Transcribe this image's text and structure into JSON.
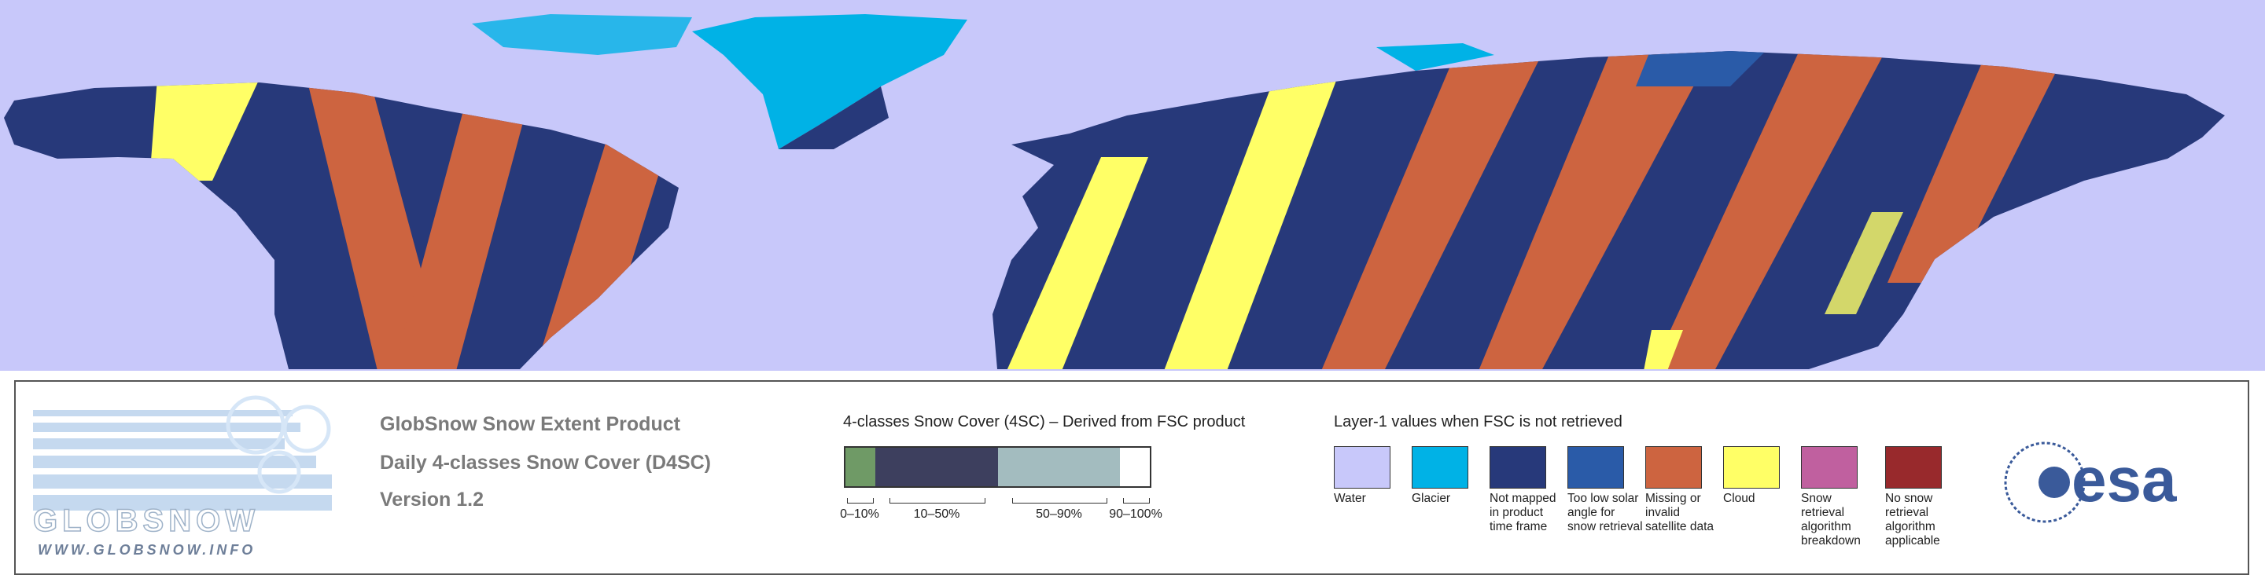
{
  "header": {
    "lines": [
      "GlobSnow Snow Extent Product",
      "Daily 4-classes Snow Cover (D4SC)",
      "Version 1.2"
    ]
  },
  "logo": {
    "name": "GLOBSNOW",
    "url": "WWW.GLOBSNOW.INFO",
    "agency": "esa"
  },
  "fsc_legend": {
    "title": "4-classes Snow Cover (4SC) – Derived from FSC product",
    "classes": [
      {
        "label": "0–10%",
        "color": "#6f9a66"
      },
      {
        "label": "10–50%",
        "color": "#3d3f5e"
      },
      {
        "label": "50–90%",
        "color": "#a3bcbf"
      },
      {
        "label": "90–100%",
        "color": "#ffffff"
      }
    ]
  },
  "layer1_legend": {
    "title": "Layer-1 values when FSC is not retrieved",
    "items": [
      {
        "label": "Water",
        "color": "#c8c8fa"
      },
      {
        "label": "Glacier",
        "color": "#00b2e6"
      },
      {
        "label": "Not mapped in product time frame",
        "color": "#27397a"
      },
      {
        "label": "Too low solar angle for snow retrieval",
        "color": "#2a5ba8"
      },
      {
        "label": "Missing or invalid satellite data",
        "color": "#cd6440"
      },
      {
        "label": "Cloud",
        "color": "#ffff66"
      },
      {
        "label": "Snow retrieval algorithm breakdown",
        "color": "#c0609f"
      },
      {
        "label": "No snow retrieval algorithm applicable",
        "color": "#98292c"
      }
    ]
  }
}
